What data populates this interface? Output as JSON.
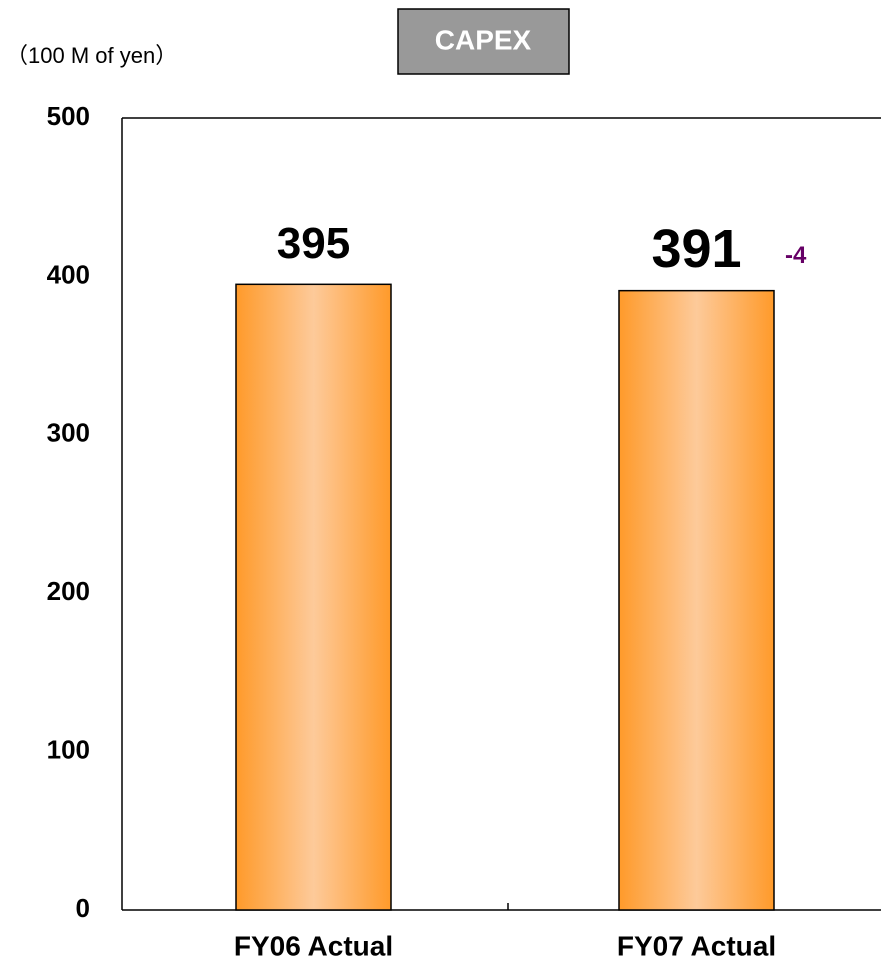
{
  "chart_data": {
    "type": "bar",
    "title": "CAPEX",
    "y_label": "（100 M of yen）",
    "categories": [
      "FY06 Actual",
      "FY07 Actual"
    ],
    "values": [
      395,
      391
    ],
    "annotation": "-4",
    "color": "#ff9a2a",
    "ylim": [
      0,
      500
    ],
    "yticks": [
      0,
      100,
      200,
      300,
      400,
      500
    ],
    "grid": false
  }
}
